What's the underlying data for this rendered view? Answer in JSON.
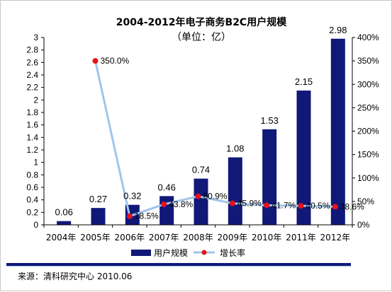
{
  "chart_data": {
    "type": "bar",
    "title": "2004-2012年电子商务B2C用户规模",
    "subtitle": "（单位：亿）",
    "categories": [
      "2004年",
      "2005年",
      "2006年",
      "2007年",
      "2008年",
      "2009年",
      "2010年",
      "2011年",
      "2012年"
    ],
    "series": [
      {
        "name": "用户规模",
        "type": "bar",
        "axis": "left",
        "color": "#101878",
        "values": [
          0.06,
          0.27,
          0.32,
          0.46,
          0.74,
          1.08,
          1.53,
          2.15,
          2.98
        ],
        "labels": [
          "0.06",
          "0.27",
          "0.32",
          "0.46",
          "0.74",
          "1.08",
          "1.53",
          "2.15",
          "2.98"
        ]
      },
      {
        "name": "增长率",
        "type": "line",
        "axis": "right",
        "line_color": "#9fc6ea",
        "marker_color": "#e8121a",
        "values": [
          null,
          350.0,
          18.5,
          43.8,
          60.9,
          45.9,
          41.7,
          40.5,
          38.6
        ],
        "labels": [
          "",
          "350.0%",
          "18.5%",
          "43.8%",
          "60.9%",
          "45.9%",
          "41.7%",
          "40.5%",
          "38.6%"
        ]
      }
    ],
    "y_left": {
      "ylim": [
        0,
        3
      ],
      "ticks": [
        "0",
        "0.2",
        "0.4",
        "0.6",
        "0.8",
        "1",
        "1.2",
        "1.4",
        "1.6",
        "1.8",
        "2",
        "2.2",
        "2.4",
        "2.6",
        "2.8",
        "3"
      ]
    },
    "y_right": {
      "ylim": [
        0,
        400
      ],
      "ticks": [
        "0%",
        "50%",
        "100%",
        "150%",
        "200%",
        "250%",
        "300%",
        "350%",
        "400%"
      ]
    },
    "grid": false,
    "legend": "bottom"
  },
  "source": "来源：清科研究中心 2010.06"
}
